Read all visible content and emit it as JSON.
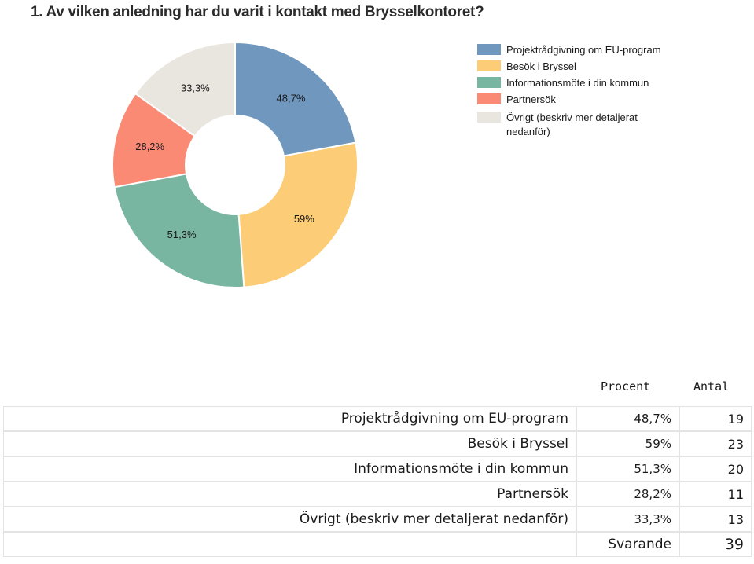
{
  "question_title": "1. Av vilken anledning har du varit i kontakt med Brysselkontoret?",
  "chart_data": {
    "type": "pie",
    "categories": [
      "Projektrådgivning om EU-program",
      "Besök i Bryssel",
      "Informationsmöte i din kommun",
      "Partnersök",
      "Övrigt (beskriv mer detaljerat nedanför)"
    ],
    "values": [
      48.7,
      59,
      51.3,
      28.2,
      33.3
    ],
    "value_labels": [
      "48,7%",
      "59%",
      "51,3%",
      "28,2%",
      "33,3%"
    ],
    "colors": [
      "#7097bd",
      "#fccc76",
      "#79b6a2",
      "#fa8a74",
      "#e9e5df"
    ],
    "donut": true,
    "legend_items": [
      "Projektrådgivning om EU-program",
      "Besök i Bryssel",
      "Informationsmöte i din kommun",
      "Partnersök",
      "Övrigt (beskriv mer detaljerat nedanför)"
    ],
    "legend_placement": "right"
  },
  "table": {
    "headers": [
      "Procent",
      "Antal"
    ],
    "rows": [
      {
        "label": "Projektrådgivning om EU-program",
        "procent": "48,7%",
        "antal": "19"
      },
      {
        "label": "Besök i Bryssel",
        "procent": "59%",
        "antal": "23"
      },
      {
        "label": "Informationsmöte i din kommun",
        "procent": "51,3%",
        "antal": "20"
      },
      {
        "label": "Partnersök",
        "procent": "28,2%",
        "antal": "11"
      },
      {
        "label": "Övrigt (beskriv mer detaljerat nedanför)",
        "procent": "33,3%",
        "antal": "13"
      }
    ],
    "total_label": "Svarande",
    "total_value": "39"
  }
}
